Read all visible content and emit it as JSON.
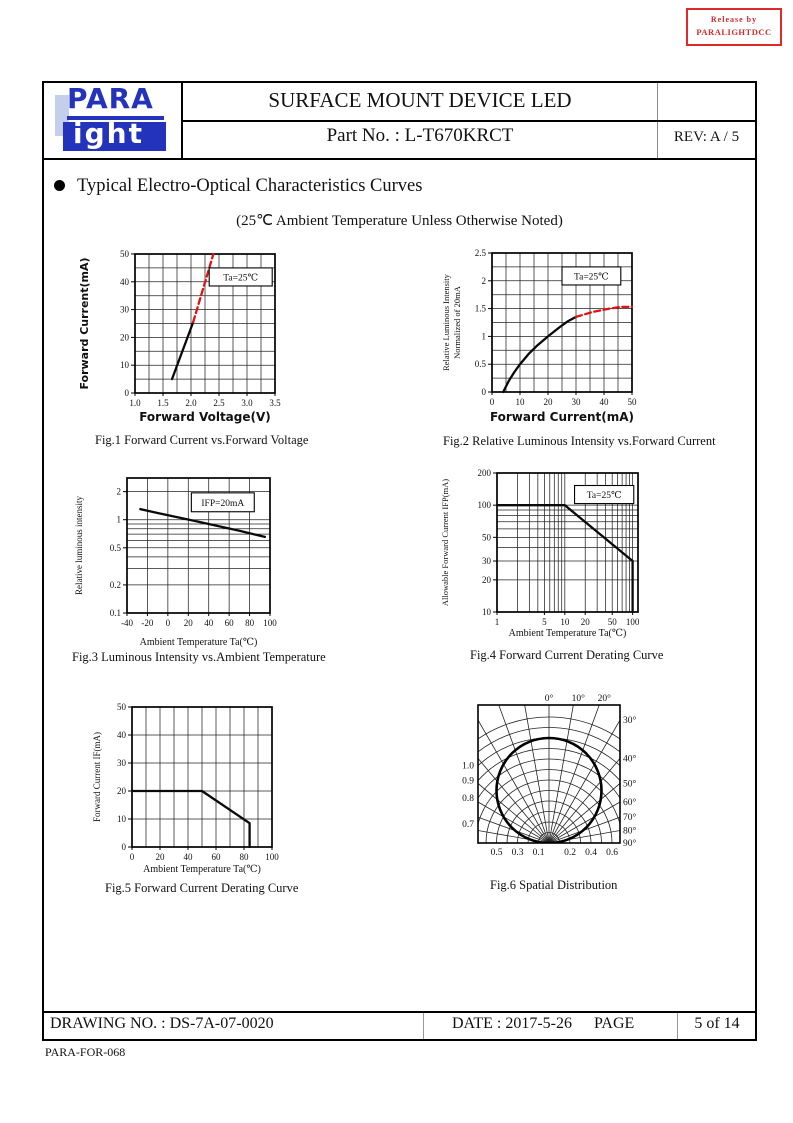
{
  "stamp": {
    "line1": "Release  by",
    "line2": "PARALIGHTDCC",
    "color": "#d42a2a"
  },
  "logo": {
    "word_top": "PARA",
    "word_bottom": "ight",
    "blue": "#2433bb"
  },
  "header": {
    "product_title": "SURFACE MOUNT DEVICE LED",
    "part_no": "Part No. : L-T670KRCT",
    "rev": "REV: A / 5"
  },
  "section": {
    "heading": "Typical Electro-Optical Characteristics Curves",
    "subtitle": "(25℃  Ambient Temperature Unless Otherwise Noted)"
  },
  "footer": {
    "drawing_no": "DRAWING NO. : DS-7A-07-0020",
    "date_label": "DATE : 2017-5-26",
    "page_label": "PAGE",
    "page_value": "5 of 14",
    "form_code": "PARA-FOR-068"
  },
  "chart_data": [
    {
      "type": "line",
      "scale": {
        "x": "linear",
        "y": "linear"
      },
      "title": "Fig.1 Forward Current vs.Forward Voltage",
      "xlabel": "Forward Voltage(V)",
      "ylabel": "Forward Current(mA)",
      "annotation": "Ta=25℃",
      "xlim": [
        1.0,
        3.5
      ],
      "ylim": [
        0,
        50
      ],
      "xticks": [
        {
          "v": 1.0,
          "l": "1.0"
        },
        {
          "v": 1.5,
          "l": "1.5"
        },
        {
          "v": 2.0,
          "l": "2.0"
        },
        {
          "v": 2.5,
          "l": "2.5"
        },
        {
          "v": 3.0,
          "l": "3.0"
        },
        {
          "v": 3.5,
          "l": "3.5"
        }
      ],
      "yticks": [
        {
          "v": 0,
          "l": "0"
        },
        {
          "v": 10,
          "l": "10"
        },
        {
          "v": 20,
          "l": "20"
        },
        {
          "v": 30,
          "l": "30"
        },
        {
          "v": 40,
          "l": "40"
        },
        {
          "v": 50,
          "l": "50"
        }
      ],
      "xgrid": {
        "step": 0.25
      },
      "ygrid": {
        "step": 5
      },
      "series": [
        {
          "name": "dc-region",
          "style": "solid",
          "color": "#0a0a0a",
          "points": [
            [
              1.66,
              5
            ],
            [
              2.04,
              25.5
            ]
          ]
        },
        {
          "name": "pulse-region",
          "style": "dashed",
          "color": "#e01212",
          "points": [
            [
              2.04,
              25.5
            ],
            [
              2.4,
              50
            ]
          ]
        }
      ]
    },
    {
      "type": "line",
      "scale": {
        "x": "linear",
        "y": "linear"
      },
      "title": "Fig.2 Relative Luminous Intensity vs.Forward Current",
      "xlabel": "Forward Current(mA)",
      "ylabel_lines": [
        "Relative Luminous Intensity",
        "Normalized of 20mA"
      ],
      "annotation": "Ta=25℃",
      "xlim": [
        0,
        50
      ],
      "ylim": [
        0,
        2.5
      ],
      "xticks": [
        {
          "v": 0,
          "l": "0"
        },
        {
          "v": 10,
          "l": "10"
        },
        {
          "v": 20,
          "l": "20"
        },
        {
          "v": 30,
          "l": "30"
        },
        {
          "v": 40,
          "l": "40"
        },
        {
          "v": 50,
          "l": "50"
        }
      ],
      "yticks": [
        {
          "v": 0,
          "l": "0"
        },
        {
          "v": 0.5,
          "l": "0.5"
        },
        {
          "v": 1,
          "l": "1"
        },
        {
          "v": 1.5,
          "l": "1.5"
        },
        {
          "v": 2,
          "l": "2"
        },
        {
          "v": 2.5,
          "l": "2.5"
        }
      ],
      "xgrid": {
        "step": 5
      },
      "ygrid": {
        "step": 0.25
      },
      "series": [
        {
          "name": "dc-region",
          "style": "solid",
          "color": "#0a0a0a",
          "points": [
            [
              4,
              0
            ],
            [
              6,
              0.2
            ],
            [
              8,
              0.36
            ],
            [
              10,
              0.5
            ],
            [
              13,
              0.68
            ],
            [
              16,
              0.83
            ],
            [
              20,
              1.0
            ],
            [
              24,
              1.16
            ],
            [
              27,
              1.27
            ],
            [
              30,
              1.35
            ]
          ]
        },
        {
          "name": "pulse-region",
          "style": "dashed",
          "color": "#e01212",
          "points": [
            [
              30,
              1.35
            ],
            [
              36,
              1.44
            ],
            [
              42,
              1.5
            ],
            [
              46,
              1.53
            ],
            [
              50,
              1.53
            ]
          ]
        }
      ]
    },
    {
      "type": "line",
      "scale": {
        "x": "linear",
        "y": "log"
      },
      "title": "Fig.3 Luminous Intensity vs.Ambient Temperature",
      "xlabel": "Ambient Temperature Ta(℃)",
      "ylabel": "Relative luminous intensity",
      "annotation": "IFP=20mA",
      "xlim": [
        -40,
        100
      ],
      "ylim": [
        0.1,
        2.8
      ],
      "xticks": [
        {
          "v": -40,
          "l": "-40"
        },
        {
          "v": -20,
          "l": "-20"
        },
        {
          "v": 0,
          "l": "0"
        },
        {
          "v": 20,
          "l": "20"
        },
        {
          "v": 40,
          "l": "40"
        },
        {
          "v": 60,
          "l": "60"
        },
        {
          "v": 80,
          "l": "80"
        },
        {
          "v": 100,
          "l": "100"
        }
      ],
      "yticks": [
        {
          "v": 2,
          "l": "2"
        },
        {
          "v": 1,
          "l": "1"
        },
        {
          "v": 0.5,
          "l": "0.5"
        },
        {
          "v": 0.2,
          "l": "0.2"
        },
        {
          "v": 0.1,
          "l": "0.1"
        }
      ],
      "xgrid": {
        "step": 20
      },
      "ygrid": {
        "values": [
          0.2,
          0.3,
          0.4,
          0.5,
          0.6,
          0.7,
          0.8,
          0.9,
          1,
          2
        ]
      },
      "series": [
        {
          "name": "intensity",
          "style": "solid",
          "color": "#0a0a0a",
          "points": [
            [
              -27,
              1.3
            ],
            [
              -10,
              1.18
            ],
            [
              10,
              1.06
            ],
            [
              30,
              0.95
            ],
            [
              50,
              0.85
            ],
            [
              70,
              0.76
            ],
            [
              95,
              0.655
            ]
          ]
        }
      ]
    },
    {
      "type": "line",
      "scale": {
        "x": "log",
        "y": "log"
      },
      "title": "Fig.4 Forward Current Derating Curve",
      "xlabel": "Ambient Temperature Ta(℃)",
      "ylabel": "Allowable Forward Current IFP(mA)",
      "annotation": "Ta=25℃",
      "xlim": [
        1,
        120
      ],
      "ylim": [
        10,
        200
      ],
      "xticks": [
        {
          "v": 1,
          "l": "1"
        },
        {
          "v": 5,
          "l": "5"
        },
        {
          "v": 10,
          "l": "10"
        },
        {
          "v": 20,
          "l": "20"
        },
        {
          "v": 50,
          "l": "50"
        },
        {
          "v": 100,
          "l": "100"
        }
      ],
      "yticks": [
        {
          "v": 10,
          "l": "10"
        },
        {
          "v": 20,
          "l": "20"
        },
        {
          "v": 30,
          "l": "30"
        },
        {
          "v": 50,
          "l": "50"
        },
        {
          "v": 100,
          "l": "100"
        },
        {
          "v": 200,
          "l": "200"
        }
      ],
      "xgrid": {
        "values": [
          2,
          3,
          4,
          5,
          6,
          7,
          8,
          9,
          10,
          20,
          30,
          40,
          50,
          60,
          70,
          80,
          90,
          100
        ]
      },
      "ygrid": {
        "values": [
          20,
          30,
          40,
          50,
          60,
          70,
          80,
          90,
          100
        ]
      },
      "series": [
        {
          "name": "derating",
          "style": "solid",
          "color": "#0a0a0a",
          "points": [
            [
              1,
              100
            ],
            [
              10,
              100
            ],
            [
              100,
              30
            ],
            [
              100,
              10
            ]
          ]
        }
      ]
    },
    {
      "type": "line",
      "scale": {
        "x": "linear",
        "y": "linear"
      },
      "title": "Fig.5 Forward Current Derating Curve",
      "xlabel": "Ambient Temperature Ta(℃)",
      "ylabel": "Forward Current IF(mA)",
      "xlim": [
        0,
        100
      ],
      "ylim": [
        0,
        50
      ],
      "xticks": [
        {
          "v": 0,
          "l": "0"
        },
        {
          "v": 20,
          "l": "20"
        },
        {
          "v": 40,
          "l": "40"
        },
        {
          "v": 60,
          "l": "60"
        },
        {
          "v": 80,
          "l": "80"
        },
        {
          "v": 100,
          "l": "100"
        }
      ],
      "yticks": [
        {
          "v": 0,
          "l": "0"
        },
        {
          "v": 10,
          "l": "10"
        },
        {
          "v": 20,
          "l": "20"
        },
        {
          "v": 30,
          "l": "30"
        },
        {
          "v": 40,
          "l": "40"
        },
        {
          "v": 50,
          "l": "50"
        }
      ],
      "xgrid": {
        "step": 10
      },
      "ygrid": {
        "step": 10
      },
      "series": [
        {
          "name": "derating",
          "style": "solid",
          "color": "#0a0a0a",
          "points": [
            [
              0,
              20
            ],
            [
              50,
              20
            ],
            [
              84,
              8.5
            ],
            [
              84,
              0
            ]
          ]
        }
      ]
    },
    {
      "type": "polar",
      "title": "Fig.6 Spatial Distribution",
      "rings": {
        "min": 0.1,
        "max": 1.2,
        "step": 0.1
      },
      "ray_step_deg": 10,
      "pattern": {
        "shape": "cosine",
        "peak": 1.0
      },
      "top_angle_labels": [
        {
          "deg": 0,
          "label": "0°"
        },
        {
          "deg": 10,
          "label": "10°"
        },
        {
          "deg": 20,
          "label": "20°"
        }
      ],
      "right_angle_labels": [
        {
          "deg": 30,
          "label": "30°"
        },
        {
          "deg": 40,
          "label": "40°"
        },
        {
          "deg": 50,
          "label": "50°"
        },
        {
          "deg": 60,
          "label": "60°"
        },
        {
          "deg": 70,
          "label": "70°"
        },
        {
          "deg": 80,
          "label": "80°"
        },
        {
          "deg": 90,
          "label": "90°"
        }
      ],
      "left_intensity_labels": [
        {
          "r": 1.0,
          "label": "1.0"
        },
        {
          "r": 0.9,
          "label": "0.9"
        },
        {
          "r": 0.8,
          "label": "0.8"
        },
        {
          "r": 0.7,
          "label": "0.7"
        }
      ],
      "bottom_intensity_labels": [
        {
          "r": 0.5,
          "side": -1,
          "label": "0.5"
        },
        {
          "r": 0.3,
          "side": -1,
          "label": "0.3"
        },
        {
          "r": 0.1,
          "side": -1,
          "label": "0.1"
        },
        {
          "r": 0.2,
          "side": 1,
          "label": "0.2"
        },
        {
          "r": 0.4,
          "side": 1,
          "label": "0.4"
        },
        {
          "r": 0.6,
          "side": 1,
          "label": "0.6"
        }
      ]
    }
  ]
}
